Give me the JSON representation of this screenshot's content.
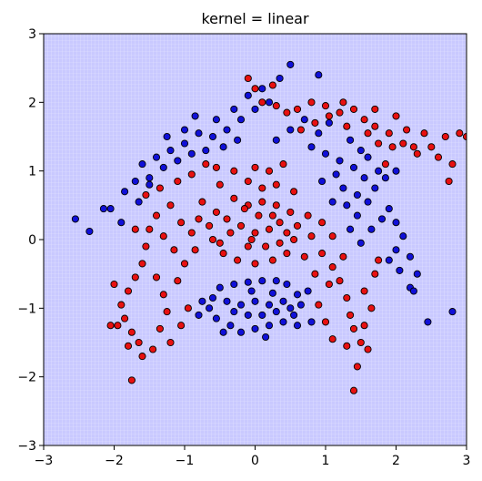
{
  "chart_data": {
    "type": "scatter",
    "title": "kernel = linear",
    "xlabel": "",
    "ylabel": "",
    "xlim": [
      -3,
      3
    ],
    "ylim": [
      -3,
      3
    ],
    "xticks": [
      -3,
      -2,
      -1,
      0,
      1,
      2,
      3
    ],
    "yticks": [
      -3,
      -2,
      -1,
      0,
      1,
      2,
      3
    ],
    "background_color": "#c9c9ff",
    "grid": false,
    "legend": "none",
    "series": [
      {
        "role": "class-0 training points",
        "color": "#1010d8",
        "edge": "#000000",
        "marker": "circle",
        "points": [
          [
            -0.35,
            -1.25
          ],
          [
            -0.2,
            -1.35
          ],
          [
            0.0,
            -1.3
          ],
          [
            0.2,
            -1.25
          ],
          [
            0.4,
            -1.2
          ],
          [
            0.55,
            -1.1
          ],
          [
            0.65,
            -0.95
          ],
          [
            0.6,
            -0.8
          ],
          [
            0.45,
            -0.65
          ],
          [
            0.3,
            -0.6
          ],
          [
            0.1,
            -0.6
          ],
          [
            -0.1,
            -0.62
          ],
          [
            -0.3,
            -0.65
          ],
          [
            -0.5,
            -0.7
          ],
          [
            -0.6,
            -0.85
          ],
          [
            -0.65,
            -1.0
          ],
          [
            -0.55,
            -1.15
          ],
          [
            -0.4,
            -0.9
          ],
          [
            -0.2,
            -0.95
          ],
          [
            0.0,
            -0.9
          ],
          [
            0.2,
            -0.95
          ],
          [
            0.4,
            -0.9
          ],
          [
            -0.1,
            -1.1
          ],
          [
            0.1,
            -1.1
          ],
          [
            0.3,
            -1.05
          ],
          [
            -0.3,
            -1.05
          ],
          [
            0.5,
            -1.0
          ],
          [
            -0.45,
            -1.35
          ],
          [
            0.15,
            -1.42
          ],
          [
            0.6,
            -1.25
          ],
          [
            0.8,
            -1.2
          ],
          [
            -0.8,
            -1.1
          ],
          [
            -0.75,
            -0.9
          ],
          [
            0.75,
            -0.75
          ],
          [
            -0.05,
            -0.75
          ],
          [
            0.25,
            -0.78
          ],
          [
            -0.6,
            1.5
          ],
          [
            -0.4,
            1.6
          ],
          [
            -0.2,
            1.75
          ],
          [
            0.0,
            1.9
          ],
          [
            0.2,
            2.0
          ],
          [
            -0.1,
            2.1
          ],
          [
            0.1,
            2.2
          ],
          [
            0.35,
            2.35
          ],
          [
            0.5,
            2.55
          ],
          [
            -0.3,
            1.9
          ],
          [
            -0.55,
            1.75
          ],
          [
            -0.8,
            1.55
          ],
          [
            -1.0,
            1.4
          ],
          [
            -1.2,
            1.3
          ],
          [
            -1.4,
            1.2
          ],
          [
            -1.6,
            1.1
          ],
          [
            -1.7,
            0.85
          ],
          [
            -1.85,
            0.7
          ],
          [
            -1.5,
            0.9
          ],
          [
            -1.3,
            1.05
          ],
          [
            -1.1,
            1.15
          ],
          [
            -0.9,
            1.25
          ],
          [
            -0.7,
            1.3
          ],
          [
            -0.45,
            1.35
          ],
          [
            -0.25,
            1.45
          ],
          [
            -1.0,
            1.6
          ],
          [
            -1.25,
            1.5
          ],
          [
            -0.85,
            1.8
          ],
          [
            0.3,
            1.45
          ],
          [
            0.5,
            1.6
          ],
          [
            -2.05,
            0.45
          ],
          [
            -2.15,
            0.45
          ],
          [
            -1.9,
            0.25
          ],
          [
            -2.35,
            0.12
          ],
          [
            -2.55,
            0.3
          ],
          [
            -1.5,
            0.8
          ],
          [
            -1.65,
            0.55
          ],
          [
            0.8,
            1.35
          ],
          [
            1.0,
            1.25
          ],
          [
            1.2,
            1.15
          ],
          [
            1.4,
            1.05
          ],
          [
            1.55,
            0.9
          ],
          [
            1.7,
            0.75
          ],
          [
            1.6,
            0.55
          ],
          [
            1.45,
            0.35
          ],
          [
            1.35,
            0.15
          ],
          [
            1.5,
            -0.05
          ],
          [
            1.65,
            0.15
          ],
          [
            1.8,
            0.3
          ],
          [
            1.9,
            0.45
          ],
          [
            2.0,
            0.25
          ],
          [
            2.1,
            0.05
          ],
          [
            2.0,
            -0.15
          ],
          [
            1.9,
            -0.3
          ],
          [
            2.05,
            -0.45
          ],
          [
            2.2,
            -0.25
          ],
          [
            2.3,
            -0.5
          ],
          [
            2.2,
            -0.7
          ],
          [
            1.25,
            0.75
          ],
          [
            1.15,
            0.95
          ],
          [
            1.3,
            0.5
          ],
          [
            1.1,
            0.55
          ],
          [
            0.95,
            0.85
          ],
          [
            1.45,
            0.65
          ],
          [
            1.75,
            1.0
          ],
          [
            1.85,
            0.9
          ],
          [
            1.6,
            1.2
          ],
          [
            1.35,
            1.45
          ],
          [
            1.5,
            1.3
          ],
          [
            0.9,
            1.55
          ],
          [
            0.7,
            1.75
          ],
          [
            1.05,
            1.7
          ],
          [
            2.0,
            1.0
          ],
          [
            2.45,
            -1.2
          ],
          [
            2.8,
            -1.05
          ],
          [
            2.25,
            -0.75
          ],
          [
            0.9,
            2.4
          ]
        ]
      },
      {
        "role": "class-1 training points",
        "color": "#e81010",
        "edge": "#000000",
        "marker": "circle",
        "points": [
          [
            -0.3,
            0.6
          ],
          [
            -0.1,
            0.5
          ],
          [
            0.1,
            0.55
          ],
          [
            0.3,
            0.5
          ],
          [
            0.5,
            0.4
          ],
          [
            0.6,
            0.2
          ],
          [
            0.55,
            0.0
          ],
          [
            0.45,
            -0.2
          ],
          [
            0.25,
            -0.3
          ],
          [
            0.0,
            -0.35
          ],
          [
            -0.25,
            -0.3
          ],
          [
            -0.45,
            -0.2
          ],
          [
            -0.6,
            0.0
          ],
          [
            -0.65,
            0.2
          ],
          [
            -0.55,
            0.4
          ],
          [
            -0.2,
            0.2
          ],
          [
            0.0,
            0.1
          ],
          [
            0.2,
            0.15
          ],
          [
            0.35,
            0.25
          ],
          [
            -0.35,
            0.1
          ],
          [
            -0.1,
            -0.1
          ],
          [
            0.15,
            -0.1
          ],
          [
            0.35,
            -0.05
          ],
          [
            -0.4,
            0.3
          ],
          [
            0.05,
            0.35
          ],
          [
            -0.15,
            0.45
          ],
          [
            0.25,
            0.35
          ],
          [
            -0.5,
            -0.05
          ],
          [
            0.45,
            0.1
          ],
          [
            -0.05,
            0.0
          ],
          [
            -0.8,
            0.3
          ],
          [
            -0.9,
            0.1
          ],
          [
            -0.85,
            -0.15
          ],
          [
            -0.75,
            0.55
          ],
          [
            0.75,
            0.35
          ],
          [
            0.8,
            0.05
          ],
          [
            0.7,
            -0.25
          ],
          [
            0.1,
            0.75
          ],
          [
            -0.1,
            0.85
          ],
          [
            0.3,
            0.8
          ],
          [
            -0.5,
            0.8
          ],
          [
            0.55,
            0.7
          ],
          [
            -0.3,
            1.0
          ],
          [
            0.0,
            1.05
          ],
          [
            0.2,
            1.0
          ],
          [
            0.4,
            1.1
          ],
          [
            -0.55,
            1.05
          ],
          [
            -1.2,
            0.5
          ],
          [
            -1.4,
            0.35
          ],
          [
            -1.5,
            0.15
          ],
          [
            -1.55,
            -0.1
          ],
          [
            -1.6,
            -0.35
          ],
          [
            -1.7,
            -0.55
          ],
          [
            -1.8,
            -0.75
          ],
          [
            -1.9,
            -0.95
          ],
          [
            -1.85,
            -1.15
          ],
          [
            -1.75,
            -1.35
          ],
          [
            -1.65,
            -1.5
          ],
          [
            -1.8,
            -1.55
          ],
          [
            -1.95,
            -1.25
          ],
          [
            -2.0,
            -0.65
          ],
          [
            -1.4,
            -0.55
          ],
          [
            -1.3,
            -0.8
          ],
          [
            -1.25,
            -1.05
          ],
          [
            -1.35,
            -1.3
          ],
          [
            -1.1,
            -0.6
          ],
          [
            -1.0,
            -0.35
          ],
          [
            -1.15,
            -0.15
          ],
          [
            -1.3,
            0.05
          ],
          [
            -1.05,
            0.25
          ],
          [
            -1.6,
            -1.7
          ],
          [
            -1.75,
            -2.05
          ],
          [
            -2.05,
            -1.25
          ],
          [
            -1.45,
            -1.6
          ],
          [
            -1.2,
            -1.5
          ],
          [
            -1.05,
            -1.25
          ],
          [
            -0.95,
            -1.0
          ],
          [
            -1.55,
            0.65
          ],
          [
            -1.35,
            0.75
          ],
          [
            -1.1,
            0.85
          ],
          [
            -0.9,
            0.95
          ],
          [
            -0.7,
            1.1
          ],
          [
            -1.7,
            0.15
          ],
          [
            0.95,
            -0.2
          ],
          [
            1.1,
            -0.4
          ],
          [
            1.2,
            -0.6
          ],
          [
            1.3,
            -0.85
          ],
          [
            1.35,
            -1.1
          ],
          [
            1.4,
            -1.3
          ],
          [
            1.5,
            -1.5
          ],
          [
            1.6,
            -1.6
          ],
          [
            1.3,
            -1.55
          ],
          [
            1.1,
            -1.45
          ],
          [
            1.45,
            -1.85
          ],
          [
            1.4,
            -2.2
          ],
          [
            1.0,
            -1.2
          ],
          [
            0.9,
            -0.95
          ],
          [
            1.55,
            -0.75
          ],
          [
            1.7,
            -0.5
          ],
          [
            1.65,
            -1.0
          ],
          [
            1.75,
            -0.3
          ],
          [
            1.05,
            -0.65
          ],
          [
            1.25,
            -0.25
          ],
          [
            0.95,
            0.25
          ],
          [
            1.1,
            0.05
          ],
          [
            0.85,
            -0.5
          ],
          [
            1.55,
            -1.25
          ],
          [
            0.6,
            1.9
          ],
          [
            0.8,
            2.0
          ],
          [
            1.0,
            1.95
          ],
          [
            1.2,
            1.85
          ],
          [
            1.4,
            1.9
          ],
          [
            1.55,
            1.75
          ],
          [
            1.7,
            1.65
          ],
          [
            1.9,
            1.55
          ],
          [
            2.1,
            1.4
          ],
          [
            2.3,
            1.25
          ],
          [
            2.5,
            1.35
          ],
          [
            2.7,
            1.5
          ],
          [
            2.9,
            1.55
          ],
          [
            3.0,
            1.5
          ],
          [
            2.6,
            1.2
          ],
          [
            2.8,
            1.1
          ],
          [
            2.4,
            1.55
          ],
          [
            2.15,
            1.6
          ],
          [
            1.95,
            1.35
          ],
          [
            1.75,
            1.4
          ],
          [
            1.6,
            1.55
          ],
          [
            1.3,
            1.65
          ],
          [
            1.05,
            1.8
          ],
          [
            0.85,
            1.7
          ],
          [
            0.65,
            1.6
          ],
          [
            0.45,
            1.85
          ],
          [
            0.3,
            1.95
          ],
          [
            0.1,
            2.0
          ],
          [
            -0.1,
            2.35
          ],
          [
            0.0,
            2.2
          ],
          [
            0.25,
            2.25
          ],
          [
            1.25,
            2.0
          ],
          [
            1.7,
            1.9
          ],
          [
            2.0,
            1.8
          ],
          [
            2.75,
            0.85
          ],
          [
            1.85,
            1.1
          ],
          [
            2.25,
            1.35
          ]
        ]
      }
    ]
  }
}
